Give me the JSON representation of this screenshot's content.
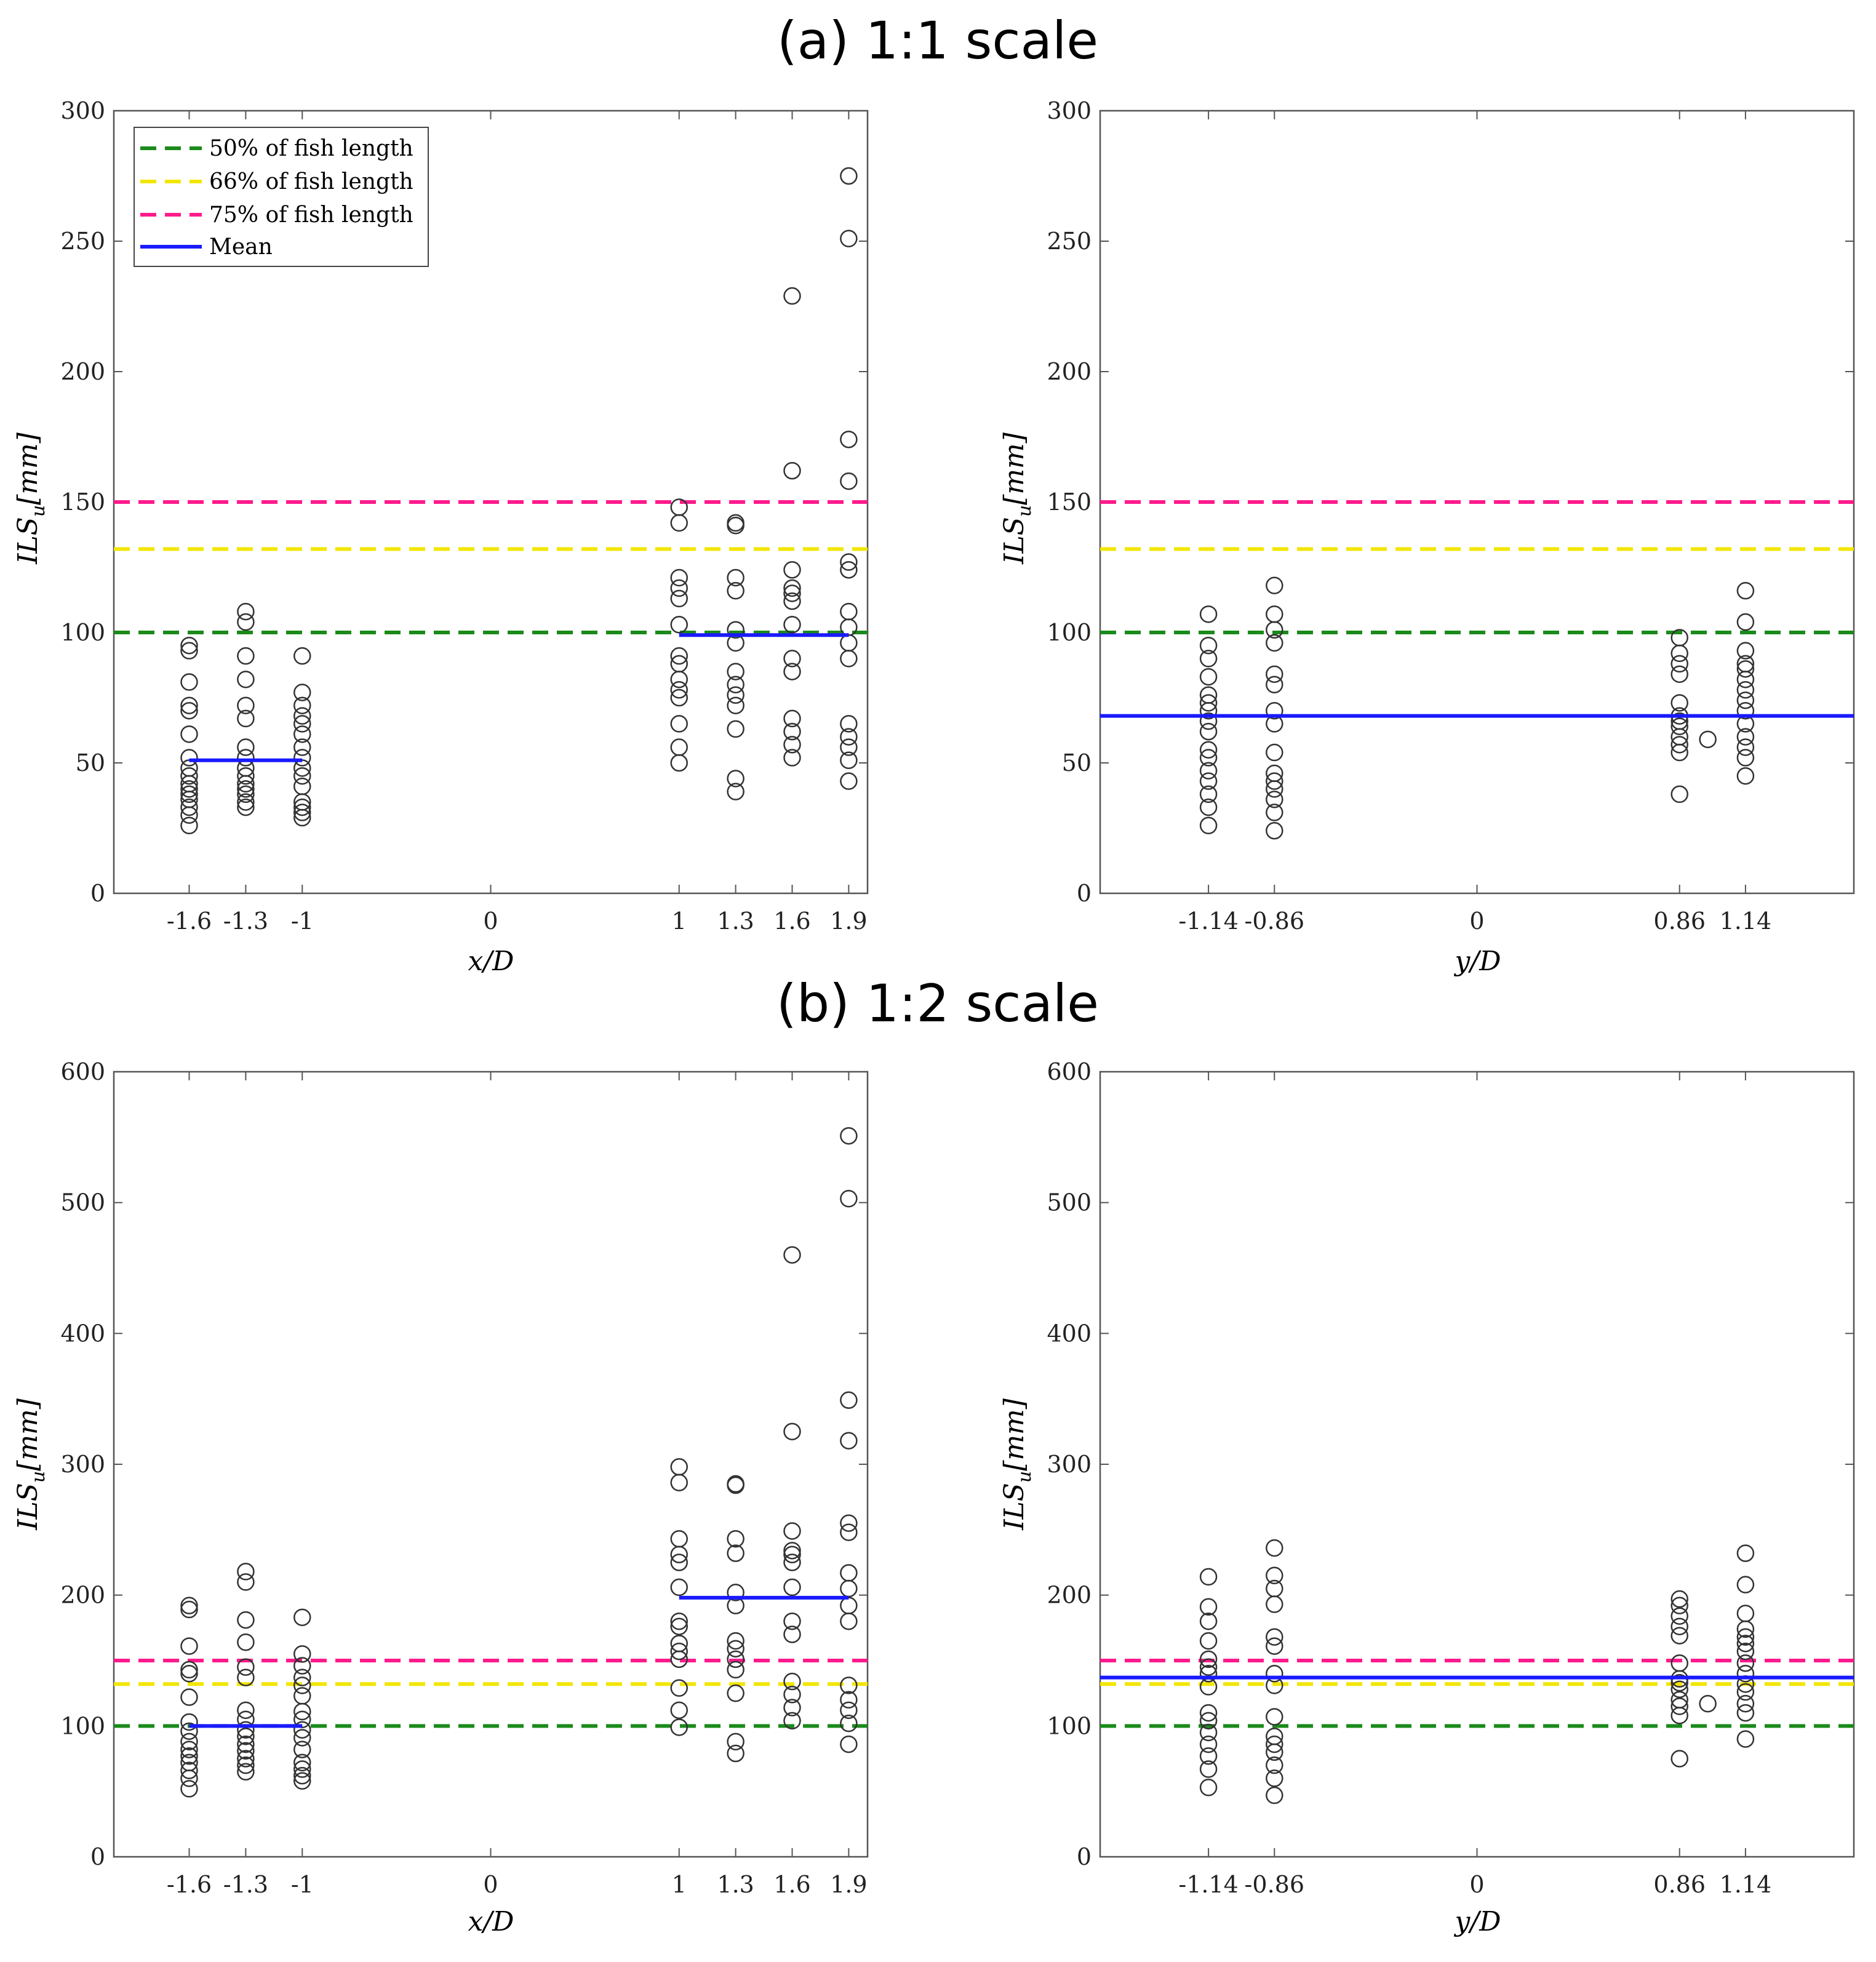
{
  "chart_data": [
    {
      "id": "a-left",
      "panel_title": "(a) 1:1 scale",
      "type": "scatter",
      "xlabel": "x/D",
      "ylabel_base": "ILS",
      "ylabel_sub": "u",
      "ylabel_unit": "[mm]",
      "xlim": [
        -2.0,
        2.0
      ],
      "ylim": [
        0,
        300
      ],
      "yticks": [
        0,
        50,
        100,
        150,
        200,
        250,
        300
      ],
      "xticks": [
        -1.6,
        -1.3,
        -1,
        0,
        1,
        1.3,
        1.6,
        1.9
      ],
      "xtick_labels": [
        "-1.6",
        "-1.3",
        "-1",
        "0",
        "1",
        "1.3",
        "1.6",
        "1.9"
      ],
      "legend": {
        "position": "top-left",
        "entries": [
          {
            "label": "50% of fish length",
            "color": "#1a8a1a",
            "style": "dashed"
          },
          {
            "label": "66% of fish length",
            "color": "#f2e600",
            "style": "dashed"
          },
          {
            "label": "75% of fish length",
            "color": "#ff1a8c",
            "style": "dashed"
          },
          {
            "label": "Mean",
            "color": "#1a1aff",
            "style": "solid"
          }
        ]
      },
      "hlines": [
        {
          "name": "50% of fish length",
          "value": 100,
          "color": "#1a8a1a"
        },
        {
          "name": "66% of fish length",
          "value": 132,
          "color": "#f2e600"
        },
        {
          "name": "75% of fish length",
          "value": 150,
          "color": "#ff1a8c"
        }
      ],
      "mean_lines": [
        {
          "x_start": -1.6,
          "x_end": -1,
          "value": 51
        },
        {
          "x_start": 1,
          "x_end": 1.9,
          "value": 99
        }
      ],
      "series": [
        {
          "x": -1.6,
          "values": [
            26,
            30,
            33,
            36,
            38,
            40,
            42,
            45,
            48,
            52,
            61,
            70,
            72,
            81,
            93,
            95
          ]
        },
        {
          "x": -1.3,
          "values": [
            33,
            35,
            38,
            40,
            42,
            45,
            48,
            52,
            56,
            67,
            72,
            82,
            91,
            104,
            108
          ]
        },
        {
          "x": -1,
          "values": [
            29,
            31,
            33,
            35,
            41,
            45,
            48,
            52,
            56,
            61,
            65,
            68,
            72,
            77,
            91
          ]
        },
        {
          "x": 1,
          "values": [
            50,
            56,
            65,
            75,
            78,
            82,
            88,
            91,
            103,
            113,
            117,
            121,
            142,
            148
          ]
        },
        {
          "x": 1.3,
          "values": [
            39,
            44,
            63,
            72,
            76,
            80,
            85,
            96,
            101,
            116,
            121,
            141,
            142
          ]
        },
        {
          "x": 1.6,
          "values": [
            52,
            57,
            62,
            67,
            85,
            90,
            103,
            112,
            115,
            117,
            124,
            162,
            229
          ]
        },
        {
          "x": 1.9,
          "values": [
            43,
            51,
            56,
            60,
            65,
            90,
            96,
            102,
            108,
            124,
            127,
            158,
            174,
            251,
            275
          ]
        }
      ]
    },
    {
      "id": "a-right",
      "type": "scatter",
      "xlabel": "y/D",
      "ylabel_base": "ILS",
      "ylabel_sub": "u",
      "ylabel_unit": "[mm]",
      "xlim": [
        -1.6,
        1.6
      ],
      "ylim": [
        0,
        300
      ],
      "yticks": [
        0,
        50,
        100,
        150,
        200,
        250,
        300
      ],
      "xticks": [
        -1.14,
        -0.86,
        0,
        0.86,
        1.14
      ],
      "xtick_labels": [
        "-1.14",
        "-0.86",
        "0",
        "0.86",
        "1.14"
      ],
      "hlines": [
        {
          "name": "50% of fish length",
          "value": 100,
          "color": "#1a8a1a"
        },
        {
          "name": "66% of fish length",
          "value": 132,
          "color": "#f2e600"
        },
        {
          "name": "75% of fish length",
          "value": 150,
          "color": "#ff1a8c"
        }
      ],
      "mean_lines": [
        {
          "x_start": -1.6,
          "x_end": 1.6,
          "value": 68
        }
      ],
      "series": [
        {
          "x": -1.14,
          "values": [
            26,
            33,
            38,
            43,
            47,
            52,
            55,
            62,
            66,
            70,
            73,
            76,
            83,
            90,
            95,
            107
          ]
        },
        {
          "x": -0.86,
          "values": [
            24,
            31,
            36,
            40,
            43,
            46,
            54,
            65,
            70,
            80,
            84,
            96,
            101,
            107,
            118
          ]
        },
        {
          "x": 0.86,
          "values": [
            38,
            54,
            57,
            60,
            64,
            66,
            68,
            73,
            84,
            88,
            92,
            98
          ]
        },
        {
          "x": 0.98,
          "values": [
            59
          ]
        },
        {
          "x": 1.14,
          "values": [
            45,
            52,
            56,
            60,
            65,
            70,
            74,
            78,
            82,
            86,
            88,
            93,
            104,
            116
          ]
        }
      ]
    },
    {
      "id": "b-left",
      "panel_title": "(b) 1:2 scale",
      "type": "scatter",
      "xlabel": "x/D",
      "ylabel_base": "ILS",
      "ylabel_sub": "u",
      "ylabel_unit": "[mm]",
      "xlim": [
        -2.0,
        2.0
      ],
      "ylim": [
        0,
        600
      ],
      "yticks": [
        0,
        100,
        200,
        300,
        400,
        500,
        600
      ],
      "xticks": [
        -1.6,
        -1.3,
        -1,
        0,
        1,
        1.3,
        1.6,
        1.9
      ],
      "xtick_labels": [
        "-1.6",
        "-1.3",
        "-1",
        "0",
        "1",
        "1.3",
        "1.6",
        "1.9"
      ],
      "hlines": [
        {
          "name": "50% of fish length",
          "value": 100,
          "color": "#1a8a1a"
        },
        {
          "name": "66% of fish length",
          "value": 132,
          "color": "#f2e600"
        },
        {
          "name": "75% of fish length",
          "value": 150,
          "color": "#ff1a8c"
        }
      ],
      "mean_lines": [
        {
          "x_start": -1.6,
          "x_end": -1,
          "value": 100
        },
        {
          "x_start": 1,
          "x_end": 1.9,
          "value": 198
        }
      ],
      "series": [
        {
          "x": -1.6,
          "values": [
            52,
            60,
            66,
            72,
            77,
            82,
            88,
            96,
            103,
            122,
            140,
            143,
            161,
            189,
            192
          ]
        },
        {
          "x": -1.3,
          "values": [
            65,
            70,
            75,
            81,
            86,
            92,
            97,
            105,
            112,
            137,
            145,
            164,
            181,
            210,
            218
          ]
        },
        {
          "x": -1,
          "values": [
            58,
            62,
            67,
            72,
            82,
            91,
            97,
            105,
            111,
            123,
            131,
            137,
            146,
            155,
            183
          ]
        },
        {
          "x": 1,
          "values": [
            99,
            112,
            129,
            151,
            157,
            163,
            176,
            180,
            206,
            225,
            231,
            243,
            286,
            298
          ]
        },
        {
          "x": 1.3,
          "values": [
            79,
            88,
            125,
            143,
            151,
            159,
            165,
            192,
            202,
            232,
            243,
            284,
            285
          ]
        },
        {
          "x": 1.6,
          "values": [
            104,
            114,
            124,
            134,
            170,
            180,
            206,
            225,
            231,
            234,
            249,
            325,
            460
          ]
        },
        {
          "x": 1.9,
          "values": [
            86,
            102,
            112,
            120,
            131,
            180,
            192,
            205,
            217,
            248,
            255,
            318,
            349,
            503,
            551
          ]
        }
      ]
    },
    {
      "id": "b-right",
      "type": "scatter",
      "xlabel": "y/D",
      "ylabel_base": "ILS",
      "ylabel_sub": "u",
      "ylabel_unit": "[mm]",
      "xlim": [
        -1.6,
        1.6
      ],
      "ylim": [
        0,
        600
      ],
      "yticks": [
        0,
        100,
        200,
        300,
        400,
        500,
        600
      ],
      "xticks": [
        -1.14,
        -0.86,
        0,
        0.86,
        1.14
      ],
      "xtick_labels": [
        "-1.14",
        "-0.86",
        "0",
        "0.86",
        "1.14"
      ],
      "hlines": [
        {
          "name": "50% of fish length",
          "value": 100,
          "color": "#1a8a1a"
        },
        {
          "name": "66% of fish length",
          "value": 132,
          "color": "#f2e600"
        },
        {
          "name": "75% of fish length",
          "value": 150,
          "color": "#ff1a8c"
        }
      ],
      "mean_lines": [
        {
          "x_start": -1.6,
          "x_end": 1.6,
          "value": 137
        }
      ],
      "series": [
        {
          "x": -1.14,
          "values": [
            53,
            67,
            77,
            86,
            95,
            104,
            110,
            130,
            140,
            145,
            151,
            165,
            180,
            191,
            214
          ]
        },
        {
          "x": -0.86,
          "values": [
            47,
            60,
            70,
            80,
            86,
            92,
            107,
            131,
            140,
            161,
            168,
            193,
            205,
            215,
            236
          ]
        },
        {
          "x": 0.86,
          "values": [
            75,
            108,
            115,
            120,
            128,
            133,
            136,
            148,
            169,
            176,
            184,
            192,
            197
          ]
        },
        {
          "x": 0.98,
          "values": [
            117
          ]
        },
        {
          "x": 1.14,
          "values": [
            90,
            110,
            117,
            126,
            132,
            140,
            148,
            157,
            163,
            168,
            174,
            186,
            208,
            232
          ]
        }
      ]
    }
  ]
}
